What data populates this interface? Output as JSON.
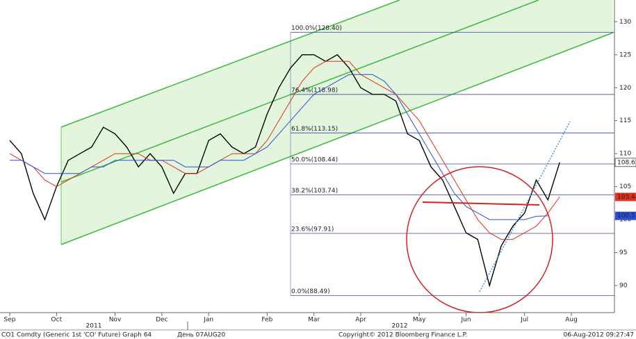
{
  "chart_data": {
    "type": "line",
    "categories": [
      "Sep",
      null,
      null,
      null,
      "Oct",
      null,
      null,
      null,
      null,
      "Nov",
      null,
      null,
      null,
      "Dec",
      null,
      null,
      null,
      "Jan",
      null,
      null,
      null,
      null,
      "Feb",
      null,
      null,
      null,
      "Mar",
      null,
      null,
      null,
      "Apr",
      null,
      null,
      null,
      null,
      "May",
      null,
      null,
      null,
      "Jun",
      null,
      null,
      null,
      null,
      "Jul",
      null,
      null,
      null,
      "Aug"
    ],
    "years": [
      "2011",
      "2012"
    ],
    "series": [
      {
        "color": "#000000",
        "values": [
          112,
          110,
          104,
          100,
          105,
          109,
          110,
          111,
          114,
          113,
          111,
          108,
          110,
          108,
          104,
          107,
          107,
          112,
          113,
          111,
          110,
          111,
          116,
          120,
          123,
          125,
          125,
          124,
          125,
          123,
          120,
          119,
          119,
          118,
          113,
          112,
          108,
          106,
          102,
          98,
          97,
          90,
          96,
          99,
          101,
          106,
          103,
          108.67,
          null
        ]
      },
      {
        "color": "#e0301e",
        "values": [
          110,
          109,
          108,
          106,
          105,
          106,
          107,
          108,
          109,
          110,
          110,
          110,
          109,
          109,
          108,
          107,
          107,
          108,
          109,
          110,
          110,
          110,
          112,
          115,
          118,
          121,
          123,
          124,
          124,
          124,
          122,
          121,
          120,
          119,
          117,
          115,
          112,
          109,
          106,
          103,
          100,
          98,
          97,
          97,
          98,
          99,
          101,
          103.44,
          null
        ]
      },
      {
        "color": "#2a4fd6",
        "values": [
          109,
          109,
          108,
          107,
          107,
          107,
          107,
          108,
          108,
          109,
          109,
          109,
          109,
          109,
          109,
          108,
          108,
          108,
          109,
          109,
          109,
          110,
          111,
          113,
          115,
          117,
          119,
          120,
          121,
          122,
          122,
          122,
          121,
          119,
          116,
          113,
          110,
          107,
          104,
          102,
          101,
          100,
          100,
          100,
          100,
          100.5,
          100.57,
          null,
          null
        ]
      }
    ],
    "fib_levels": [
      {
        "value": 128.4,
        "label": "100.0%(128.40)"
      },
      {
        "value": 118.98,
        "label": "76.4%(118.98)"
      },
      {
        "value": 113.15,
        "label": "61.8%(113.15)"
      },
      {
        "value": 108.44,
        "label": "50.0%(108.44)"
      },
      {
        "value": 103.74,
        "label": "38.2%(103.74)"
      },
      {
        "value": 97.91,
        "label": "23.6%(97.91)"
      },
      {
        "value": 88.49,
        "label": "0.0%(88.49)"
      }
    ],
    "ylim": [
      85.9,
      133.3
    ],
    "yticks": [
      90,
      95,
      100,
      105,
      110,
      115,
      120,
      125,
      130
    ],
    "footer": {
      "security": "CO1 Comdty (Generic 1st 'CO' Future) Graph 64",
      "date_code": "День 07AUG20",
      "copyright": "Copyright© 2012 Bloomberg Finance L.P.",
      "timestamp": "06-Aug-2012 09:27:47"
    }
  }
}
